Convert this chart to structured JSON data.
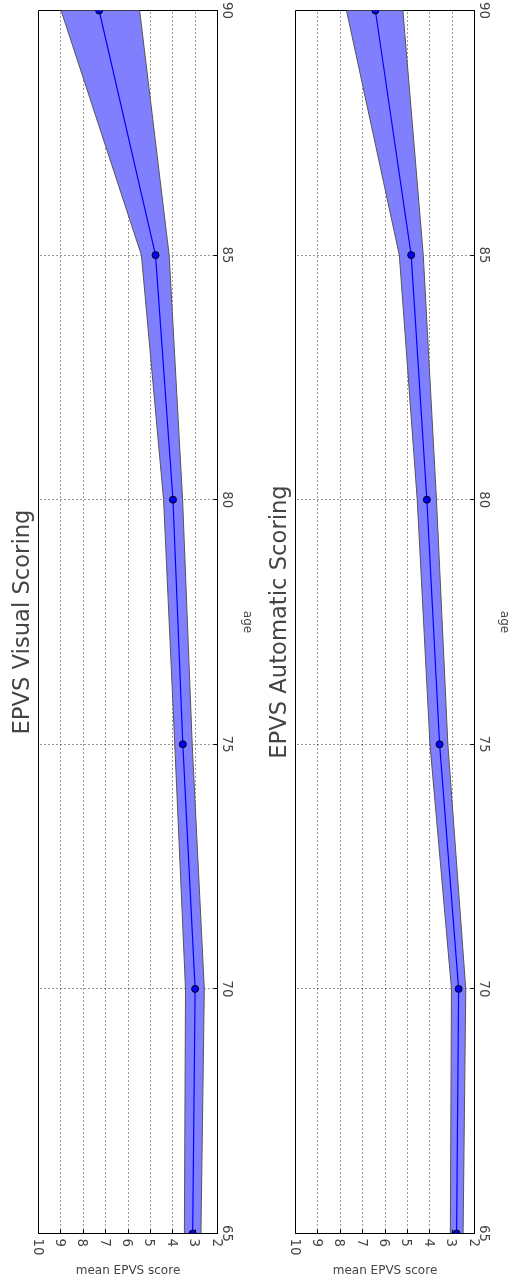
{
  "chart_data": [
    {
      "type": "line",
      "orientation": "horizontal",
      "title": "EPVS Visual Scoring",
      "xlabel": "mean EPVS score",
      "ylabel": "age",
      "x": [
        65,
        70,
        75,
        80,
        85,
        90
      ],
      "xlim": [
        10,
        2
      ],
      "xticks": [
        10,
        9,
        8,
        7,
        6,
        5,
        4,
        3,
        2
      ],
      "ylim": [
        65,
        90
      ],
      "yticks": [
        65,
        70,
        75,
        80,
        85,
        90
      ],
      "grid": true,
      "marker": "circle",
      "line_style": "solid",
      "series": [
        {
          "color": "#0000ff",
          "values": [
            3.11,
            3.0,
            3.55,
            3.99,
            4.77,
            7.29
          ],
          "lower": [
            2.74,
            2.59,
            3.13,
            3.56,
            4.16,
            5.48
          ],
          "upper": [
            3.48,
            3.43,
            3.91,
            4.41,
            5.4,
            8.99
          ]
        }
      ]
    },
    {
      "type": "line",
      "orientation": "horizontal",
      "title": "EPVS Automatic Scoring",
      "xlabel": "mean EPVS score",
      "ylabel": "age",
      "x": [
        65,
        70,
        75,
        80,
        85,
        90
      ],
      "xlim": [
        10,
        2
      ],
      "xticks": [
        10,
        9,
        8,
        7,
        6,
        5,
        4,
        3,
        2
      ],
      "ylim": [
        65,
        90
      ],
      "yticks": [
        65,
        70,
        75,
        80,
        85,
        90
      ],
      "grid": true,
      "marker": "circle",
      "line_style": "solid",
      "series": [
        {
          "color": "#0000ff",
          "values": [
            2.8,
            2.71,
            3.56,
            4.13,
            4.83,
            6.43
          ],
          "lower": [
            2.51,
            2.39,
            3.19,
            3.7,
            4.29,
            5.2
          ],
          "upper": [
            3.08,
            3.03,
            3.99,
            4.56,
            5.36,
            7.72
          ]
        }
      ]
    }
  ]
}
